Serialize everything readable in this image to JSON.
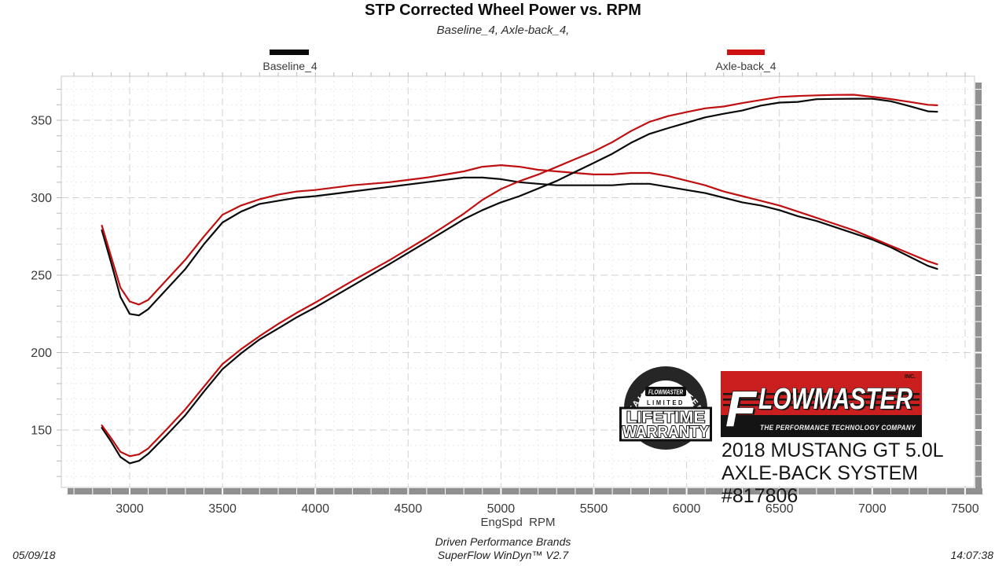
{
  "header": {
    "title": "STP Corrected Wheel Power vs. RPM",
    "subtitle": "Baseline_4, Axle-back_4,"
  },
  "legend": {
    "items": [
      {
        "label": "Baseline_4",
        "color": "#0a0a0a"
      },
      {
        "label": "Axle-back_4",
        "color": "#cf1112"
      }
    ]
  },
  "chart_data": {
    "type": "line",
    "title": "STP Corrected Wheel Power vs. RPM",
    "xlabel": "EngSpd  RPM",
    "ylabel": "",
    "x_ticks": [
      3000,
      3500,
      4000,
      4500,
      5000,
      5500,
      6000,
      6500,
      7000,
      7500
    ],
    "y_ticks": [
      150,
      200,
      250,
      300,
      350
    ],
    "xlim": [
      2630,
      7555
    ],
    "ylim": [
      113,
      378
    ],
    "x_minor_step": 100,
    "y_minor_step": 10,
    "grid": "dashed-major-and-minor",
    "legend_position": "top",
    "x": [
      2850,
      2900,
      2950,
      3000,
      3050,
      3100,
      3200,
      3300,
      3400,
      3500,
      3600,
      3700,
      3800,
      3900,
      4000,
      4200,
      4400,
      4600,
      4800,
      4900,
      5000,
      5100,
      5200,
      5300,
      5400,
      5500,
      5600,
      5700,
      5800,
      5900,
      6000,
      6100,
      6200,
      6300,
      6400,
      6500,
      6600,
      6700,
      6800,
      6900,
      7000,
      7100,
      7200,
      7300,
      7350
    ],
    "series": [
      {
        "id": "curve-baseline-torque",
        "name": "Baseline_4 (torque curve)",
        "color": "#0a0a0a",
        "values": [
          279,
          258,
          236,
          225,
          224,
          228,
          241,
          254,
          270,
          284,
          291,
          296,
          298,
          300,
          301,
          304,
          307,
          310,
          313,
          313,
          312,
          310,
          309,
          308,
          308,
          308,
          308,
          309,
          309,
          307,
          305,
          303,
          300,
          297,
          295,
          292,
          288,
          285,
          281,
          277,
          273,
          268,
          262,
          256,
          254
        ]
      },
      {
        "id": "curve-axleback-torque",
        "name": "Axle-back_4 (torque curve)",
        "color": "#c00f10",
        "values": [
          282,
          262,
          242,
          233,
          231,
          234,
          247,
          260,
          275,
          289,
          295,
          299,
          302,
          304,
          305,
          308,
          310,
          313,
          317,
          320,
          321,
          320,
          318,
          317,
          316,
          315,
          315,
          316,
          316,
          314,
          311,
          308,
          304,
          301,
          298,
          295,
          291,
          287,
          283,
          279,
          274,
          269,
          264,
          259,
          257
        ]
      },
      {
        "id": "curve-baseline-power",
        "name": "Baseline_4 (power curve)",
        "color": "#0a0a0a",
        "values": [
          151.4,
          142.5,
          132.6,
          128.5,
          130.1,
          134.6,
          146.8,
          159.6,
          174.8,
          189.3,
          199.5,
          208.5,
          215.6,
          222.8,
          229.2,
          243.1,
          257.2,
          271.5,
          286.1,
          292.0,
          297.0,
          301.0,
          305.9,
          310.8,
          316.7,
          322.5,
          328.4,
          335.4,
          341.2,
          344.9,
          348.4,
          351.9,
          354.2,
          356.3,
          359.5,
          361.4,
          361.9,
          363.6,
          363.8,
          363.9,
          363.9,
          362.3,
          359.2,
          355.8,
          355.5
        ]
      },
      {
        "id": "curve-axleback-power",
        "name": "Axle-back_4 (power curve)",
        "color": "#c00f10",
        "values": [
          153.0,
          144.7,
          135.9,
          133.1,
          134.2,
          138.1,
          150.5,
          163.4,
          178.0,
          192.6,
          202.2,
          210.6,
          218.5,
          225.7,
          232.3,
          246.3,
          259.7,
          274.1,
          289.7,
          298.6,
          305.6,
          310.7,
          314.9,
          319.9,
          324.9,
          329.9,
          335.9,
          343.0,
          349.0,
          352.7,
          355.3,
          357.7,
          358.9,
          361.1,
          363.1,
          365.1,
          365.7,
          366.1,
          366.4,
          366.5,
          365.2,
          363.7,
          361.9,
          360.0,
          359.7
        ]
      }
    ]
  },
  "branding": {
    "badge": {
      "arc_text": "STAINLESS STEEL",
      "box_text": "FLOWMASTER",
      "limited": "LIMITED",
      "line1": "LIFETIME",
      "line2": "WARRANTY"
    },
    "logo": {
      "name_first": "F",
      "name_rest": "LOWMASTER",
      "inc": "INC.",
      "tagline": "THE PERFORMANCE TECHNOLOGY COMPANY",
      "red": "#cb1f1f",
      "black": "#141414"
    },
    "model_line1": "2018 MUSTANG GT 5.0L",
    "model_line2": "AXLE-BACK SYSTEM #817806"
  },
  "footer": {
    "date": "05/09/18",
    "center_line1": "Driven Performance Brands",
    "center_line2": "SuperFlow WinDyn™ V2.7",
    "time": "14:07:38"
  }
}
